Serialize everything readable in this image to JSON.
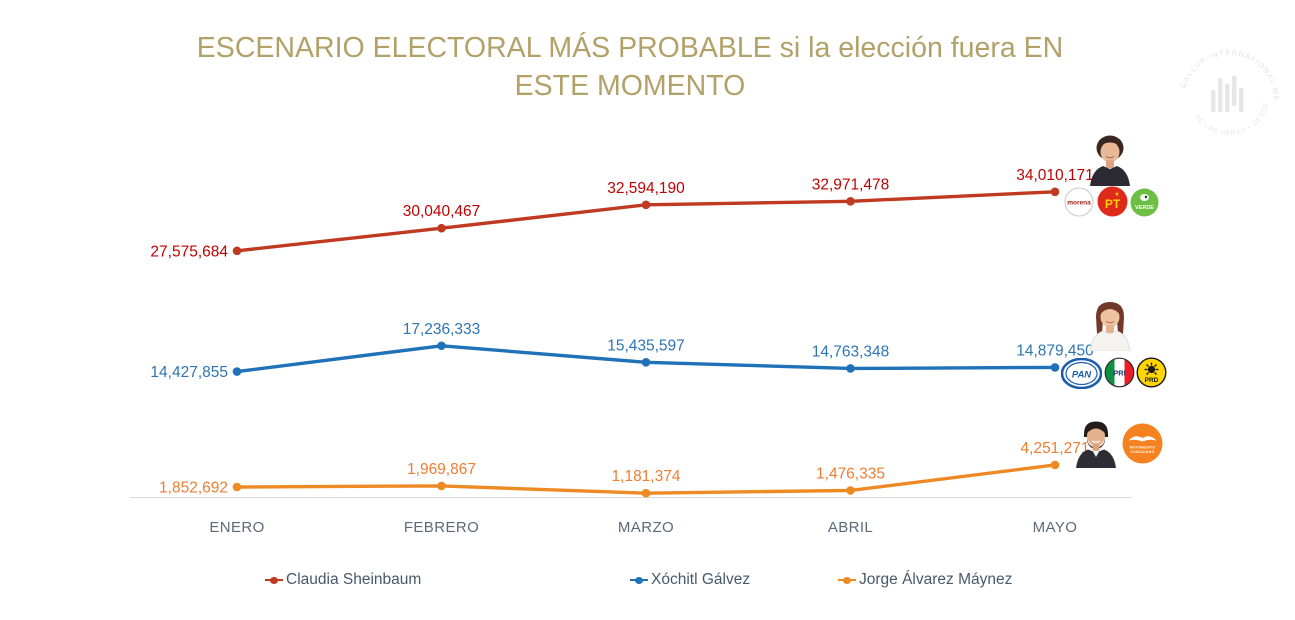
{
  "title": "ESCENARIO ELECTORAL MÁS PROBABLE si la elección fuera EN ESTE MOMENTO",
  "watermark": {
    "top_text": "GALLUP INTERNATIONAL MEMBER",
    "bottom_text": "DE LAS HERAS • DESDE 2023"
  },
  "chart_data": {
    "type": "line",
    "categories": [
      "ENERO",
      "FEBRERO",
      "MARZO",
      "ABRIL",
      "MAYO"
    ],
    "series": [
      {
        "name": "Claudia Sheinbaum",
        "values": [
          27575684,
          30040467,
          32594190,
          32971478,
          34010171
        ],
        "color": "#bf3a21",
        "label_color": "#c00000"
      },
      {
        "name": "Xóchitl Gálvez",
        "values": [
          14427855,
          17236333,
          15435597,
          14763348,
          14879450
        ],
        "color": "#1f72b8",
        "label_color": "#2e74b5"
      },
      {
        "name": "Jorge Álvarez Máynez",
        "values": [
          1852692,
          1969867,
          1181374,
          1476335,
          4251271
        ],
        "color": "#ee8a24",
        "label_color": "#ed7d31"
      }
    ],
    "xlabel": "",
    "ylabel": "",
    "ylim": [
      0,
      42000000
    ],
    "grid": false,
    "legend_position": "bottom",
    "value_labels": true
  },
  "candidates": [
    {
      "name": "Claudia Sheinbaum",
      "parties": [
        "morena",
        "PT",
        "VERDE"
      ]
    },
    {
      "name": "Xóchitl Gálvez",
      "parties": [
        "PAN",
        "PRI",
        "PRD"
      ]
    },
    {
      "name": "Jorge Álvarez Máynez",
      "parties": [
        "Movimiento Ciudadano"
      ]
    }
  ],
  "party_logos": {
    "morena": "morena",
    "pt": "PT",
    "pt_star": "★",
    "verde": "VERDE",
    "pan": "PAN",
    "pri": "PRI",
    "prd": "PRD",
    "mc_line1": "MOVIMIENTO",
    "mc_line2": "CIUDADANO"
  },
  "legend": {
    "items": [
      {
        "label": "Claudia Sheinbaum",
        "color": "#bf3a21"
      },
      {
        "label": "Xóchitl Gálvez",
        "color": "#1f72b8"
      },
      {
        "label": "Jorge Álvarez Máynez",
        "color": "#ee8a24"
      }
    ]
  }
}
